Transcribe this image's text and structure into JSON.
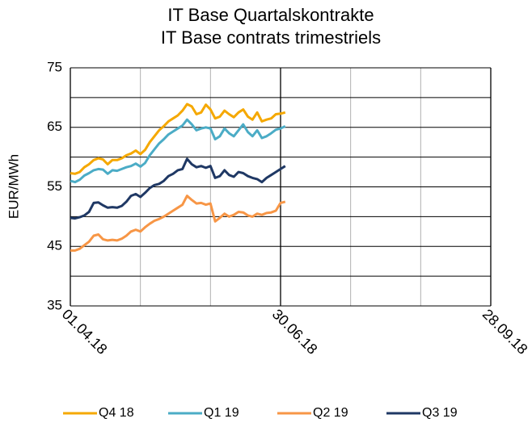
{
  "chart_data": {
    "type": "line",
    "title": [
      "IT Base Quartalskontrakte",
      "IT Base contrats trimestriels"
    ],
    "ylabel": "EUR/MWh",
    "x": [
      "2018-04-01",
      "2018-04-03",
      "2018-04-05",
      "2018-04-07",
      "2018-04-09",
      "2018-04-11",
      "2018-04-13",
      "2018-04-15",
      "2018-04-17",
      "2018-04-19",
      "2018-04-21",
      "2018-04-23",
      "2018-04-25",
      "2018-04-27",
      "2018-04-29",
      "2018-05-01",
      "2018-05-03",
      "2018-05-05",
      "2018-05-07",
      "2018-05-09",
      "2018-05-11",
      "2018-05-13",
      "2018-05-15",
      "2018-05-17",
      "2018-05-19",
      "2018-05-21",
      "2018-05-23",
      "2018-05-25",
      "2018-05-27",
      "2018-05-29",
      "2018-05-31",
      "2018-06-02",
      "2018-06-04",
      "2018-06-06",
      "2018-06-08",
      "2018-06-10",
      "2018-06-12",
      "2018-06-14",
      "2018-06-16",
      "2018-06-18",
      "2018-06-20",
      "2018-06-22",
      "2018-06-24",
      "2018-06-26",
      "2018-06-28",
      "2018-06-30",
      "2018-07-02"
    ],
    "series": [
      {
        "name": "Q4 18",
        "color": "#f5a800",
        "values": [
          57.3,
          57.2,
          57.5,
          58.3,
          58.8,
          59.5,
          59.8,
          59.6,
          58.8,
          59.5,
          59.5,
          59.8,
          60.3,
          60.6,
          61.1,
          60.5,
          61.2,
          62.5,
          63.5,
          64.5,
          65.2,
          66.0,
          66.5,
          67.0,
          67.8,
          68.9,
          68.5,
          67.2,
          67.5,
          68.8,
          68.0,
          66.5,
          66.8,
          67.8,
          67.2,
          66.7,
          67.5,
          68.0,
          66.8,
          66.3,
          67.5,
          66.0,
          66.3,
          66.5,
          67.2,
          67.3,
          67.5
        ]
      },
      {
        "name": "Q1 19",
        "color": "#4bacc6",
        "values": [
          56.0,
          55.8,
          56.2,
          56.9,
          57.3,
          57.8,
          58.0,
          57.9,
          57.2,
          57.8,
          57.7,
          58.0,
          58.3,
          58.5,
          58.9,
          58.4,
          59.0,
          60.3,
          61.3,
          62.3,
          63.0,
          63.8,
          64.3,
          64.8,
          65.3,
          66.3,
          65.5,
          64.5,
          64.8,
          65.0,
          64.8,
          63.0,
          63.5,
          64.8,
          64.0,
          63.5,
          64.5,
          65.5,
          64.2,
          63.5,
          64.5,
          63.2,
          63.5,
          64.0,
          64.6,
          64.8,
          65.2
        ]
      },
      {
        "name": "Q2 19",
        "color": "#f79646",
        "values": [
          44.3,
          44.3,
          44.6,
          45.2,
          45.8,
          46.8,
          47.0,
          46.2,
          46.0,
          46.1,
          46.0,
          46.3,
          46.8,
          47.5,
          47.8,
          47.5,
          48.2,
          48.8,
          49.3,
          49.6,
          50.0,
          50.5,
          51.0,
          51.5,
          52.0,
          53.5,
          52.8,
          52.2,
          52.3,
          52.0,
          52.2,
          49.2,
          49.8,
          50.5,
          50.0,
          50.3,
          50.8,
          50.7,
          50.2,
          50.0,
          50.5,
          50.3,
          50.6,
          50.7,
          51.0,
          52.3,
          52.5
        ]
      },
      {
        "name": "Q3 19",
        "color": "#1f3864",
        "values": [
          49.8,
          49.7,
          49.9,
          50.2,
          50.8,
          52.3,
          52.4,
          51.9,
          51.5,
          51.6,
          51.5,
          51.8,
          52.5,
          53.5,
          53.8,
          53.3,
          54.0,
          54.8,
          55.3,
          55.5,
          56.0,
          56.8,
          57.2,
          57.8,
          58.0,
          59.7,
          58.8,
          58.3,
          58.5,
          58.2,
          58.5,
          56.5,
          56.8,
          57.8,
          57.0,
          56.7,
          57.5,
          57.3,
          56.8,
          56.5,
          56.3,
          55.8,
          56.5,
          57.0,
          57.5,
          58.0,
          58.5
        ]
      }
    ],
    "xlim": [
      "2018-04-01",
      "2018-09-28"
    ],
    "xticks": [
      {
        "value": "2018-04-01",
        "label": "01.04.18"
      },
      {
        "value": "2018-06-30",
        "label": "30.06.18"
      },
      {
        "value": "2018-09-28",
        "label": "28.09.18"
      }
    ],
    "xgrid_step_days": 30,
    "ylim": [
      35,
      75
    ],
    "yticks": [
      35,
      45,
      55,
      65,
      75
    ],
    "minor_grid": true,
    "grid": true,
    "legend": "bottom"
  }
}
